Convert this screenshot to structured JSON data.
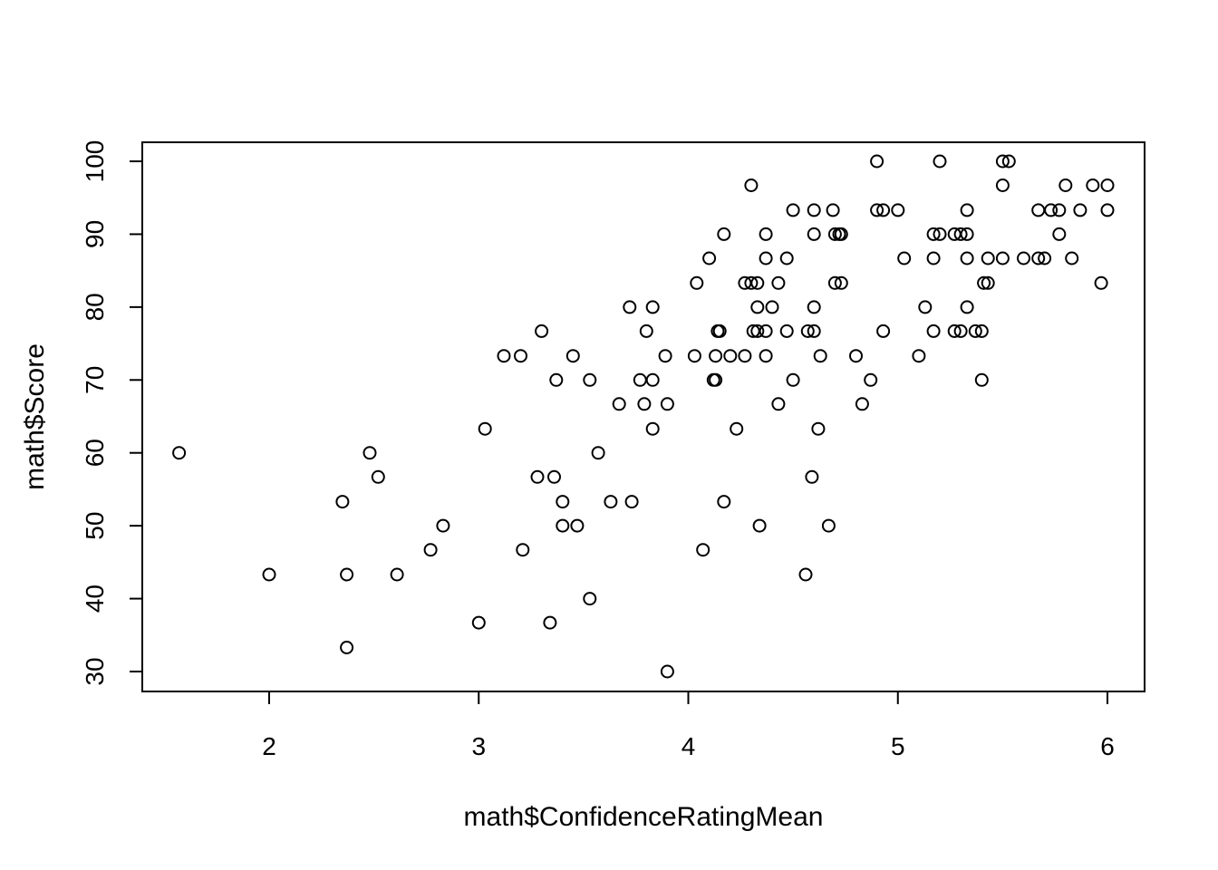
{
  "chart_data": {
    "type": "scatter",
    "title": "",
    "xlabel": "math$ConfidenceRatingMean",
    "ylabel": "math$Score",
    "xlim": [
      1.5,
      6.2
    ],
    "ylim": [
      26,
      102
    ],
    "xticks": [
      2,
      3,
      4,
      5,
      6
    ],
    "yticks": [
      30,
      40,
      50,
      60,
      70,
      80,
      90,
      100
    ],
    "xtick_labels": [
      "2",
      "3",
      "4",
      "5",
      "6"
    ],
    "ytick_labels": [
      "30",
      "40",
      "50",
      "60",
      "70",
      "80",
      "90",
      "100"
    ],
    "grid": false,
    "marker": "open-circle",
    "colors": {
      "points": "#000000",
      "frame": "#000000",
      "background": "#ffffff"
    },
    "points": [
      [
        1.57,
        60
      ],
      [
        2.0,
        43.3
      ],
      [
        2.35,
        53.3
      ],
      [
        2.37,
        43.3
      ],
      [
        2.37,
        33.3
      ],
      [
        2.48,
        60
      ],
      [
        2.52,
        56.7
      ],
      [
        2.61,
        43.3
      ],
      [
        2.77,
        46.7
      ],
      [
        2.83,
        50
      ],
      [
        3.0,
        36.7
      ],
      [
        3.03,
        63.3
      ],
      [
        3.12,
        73.3
      ],
      [
        3.2,
        73.3
      ],
      [
        3.21,
        46.7
      ],
      [
        3.28,
        56.7
      ],
      [
        3.3,
        76.7
      ],
      [
        3.34,
        36.7
      ],
      [
        3.36,
        56.7
      ],
      [
        3.37,
        70
      ],
      [
        3.4,
        53.3
      ],
      [
        3.4,
        50
      ],
      [
        3.45,
        73.3
      ],
      [
        3.47,
        50
      ],
      [
        3.53,
        70
      ],
      [
        3.53,
        40
      ],
      [
        3.57,
        60
      ],
      [
        3.63,
        53.3
      ],
      [
        3.67,
        66.7
      ],
      [
        3.72,
        80
      ],
      [
        3.73,
        53.3
      ],
      [
        3.77,
        70
      ],
      [
        3.79,
        66.7
      ],
      [
        3.8,
        76.7
      ],
      [
        3.83,
        80
      ],
      [
        3.83,
        70
      ],
      [
        3.83,
        63.3
      ],
      [
        3.89,
        73.3
      ],
      [
        3.9,
        66.7
      ],
      [
        3.9,
        30
      ],
      [
        4.03,
        73.3
      ],
      [
        4.04,
        83.3
      ],
      [
        4.07,
        46.7
      ],
      [
        4.1,
        86.7
      ],
      [
        4.12,
        70
      ],
      [
        4.13,
        70
      ],
      [
        4.13,
        73.3
      ],
      [
        4.14,
        76.7
      ],
      [
        4.15,
        76.7
      ],
      [
        4.17,
        90
      ],
      [
        4.17,
        53.3
      ],
      [
        4.2,
        73.3
      ],
      [
        4.23,
        63.3
      ],
      [
        4.27,
        83.3
      ],
      [
        4.27,
        73.3
      ],
      [
        4.3,
        96.7
      ],
      [
        4.3,
        83.3
      ],
      [
        4.31,
        76.7
      ],
      [
        4.33,
        83.3
      ],
      [
        4.33,
        80
      ],
      [
        4.33,
        76.7
      ],
      [
        4.34,
        50
      ],
      [
        4.37,
        90
      ],
      [
        4.37,
        86.7
      ],
      [
        4.37,
        76.7
      ],
      [
        4.37,
        73.3
      ],
      [
        4.4,
        80
      ],
      [
        4.43,
        83.3
      ],
      [
        4.43,
        66.7
      ],
      [
        4.47,
        86.7
      ],
      [
        4.47,
        76.7
      ],
      [
        4.5,
        93.3
      ],
      [
        4.5,
        70
      ],
      [
        4.56,
        43.3
      ],
      [
        4.57,
        76.7
      ],
      [
        4.59,
        56.7
      ],
      [
        4.6,
        93.3
      ],
      [
        4.6,
        90
      ],
      [
        4.6,
        80
      ],
      [
        4.6,
        76.7
      ],
      [
        4.62,
        63.3
      ],
      [
        4.63,
        73.3
      ],
      [
        4.67,
        50
      ],
      [
        4.69,
        93.3
      ],
      [
        4.7,
        90
      ],
      [
        4.7,
        83.3
      ],
      [
        4.72,
        90
      ],
      [
        4.73,
        83.3
      ],
      [
        4.73,
        90
      ],
      [
        4.8,
        73.3
      ],
      [
        4.83,
        66.7
      ],
      [
        4.87,
        70
      ],
      [
        4.9,
        100
      ],
      [
        4.9,
        93.3
      ],
      [
        4.93,
        93.3
      ],
      [
        4.93,
        76.7
      ],
      [
        5.0,
        93.3
      ],
      [
        5.03,
        86.7
      ],
      [
        5.1,
        73.3
      ],
      [
        5.13,
        80
      ],
      [
        5.17,
        90
      ],
      [
        5.17,
        86.7
      ],
      [
        5.17,
        76.7
      ],
      [
        5.2,
        100
      ],
      [
        5.2,
        90
      ],
      [
        5.27,
        90
      ],
      [
        5.27,
        76.7
      ],
      [
        5.3,
        90
      ],
      [
        5.3,
        76.7
      ],
      [
        5.33,
        93.3
      ],
      [
        5.33,
        90
      ],
      [
        5.33,
        86.7
      ],
      [
        5.33,
        80
      ],
      [
        5.37,
        76.7
      ],
      [
        5.4,
        76.7
      ],
      [
        5.4,
        70
      ],
      [
        5.41,
        83.3
      ],
      [
        5.43,
        86.7
      ],
      [
        5.43,
        83.3
      ],
      [
        5.5,
        100
      ],
      [
        5.5,
        96.7
      ],
      [
        5.5,
        86.7
      ],
      [
        5.53,
        100
      ],
      [
        5.6,
        86.7
      ],
      [
        5.67,
        93.3
      ],
      [
        5.67,
        86.7
      ],
      [
        5.7,
        86.7
      ],
      [
        5.73,
        93.3
      ],
      [
        5.77,
        93.3
      ],
      [
        5.77,
        90
      ],
      [
        5.8,
        96.7
      ],
      [
        5.83,
        86.7
      ],
      [
        5.87,
        93.3
      ],
      [
        5.93,
        96.7
      ],
      [
        5.97,
        83.3
      ],
      [
        6.0,
        96.7
      ],
      [
        6.0,
        93.3
      ]
    ]
  }
}
